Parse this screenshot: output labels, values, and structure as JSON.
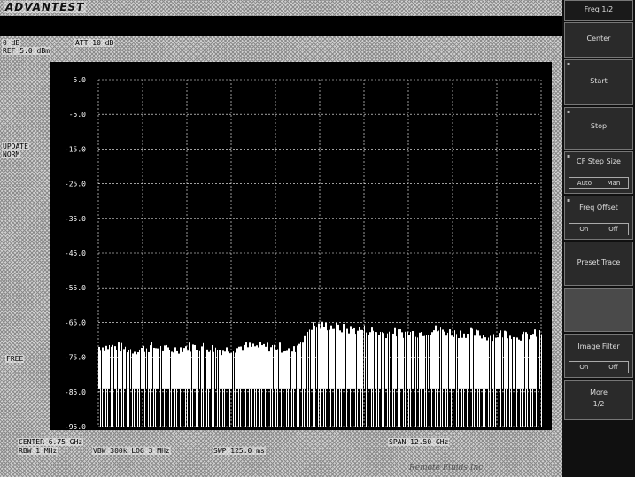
{
  "header": {
    "brand": "ADVANTEST"
  },
  "settings": {
    "line1_left": "0 dB",
    "line1_right": "ATT 10 dB",
    "line2": "REF 5.0 dBm"
  },
  "side_labels": {
    "update": "UPDATE",
    "mode": "NORM",
    "free": "FREE"
  },
  "y_ticks": [
    "5.0",
    "-5.0",
    "-15.0",
    "-25.0",
    "-35.0",
    "-45.0",
    "-55.0",
    "-65.0",
    "-75.0",
    "-85.0",
    "-95.0"
  ],
  "footer": {
    "center": "CENTER 6.75 GHz",
    "span": "SPAN 12.50 GHz",
    "rbw": "RBW 1 MHz",
    "vbw": "VBW 300k LOG 3 MHz",
    "swp": "SWP 125.0 ms",
    "watermark": "Remote Fluids Inc."
  },
  "softkeys": {
    "page": "Freq 1/2",
    "center": "Center",
    "start": "Start",
    "stop": "Stop",
    "cf_step": "CF Step Size",
    "cf_step_opt1": "Auto",
    "cf_step_opt2": "Man",
    "freq_offset": "Freq Offset",
    "freq_offset_opt1": "On",
    "freq_offset_opt2": "Off",
    "preset_trace": "Preset Trace",
    "image_filter": "Image Filter",
    "image_filter_opt1": "On",
    "image_filter_opt2": "Off",
    "more": "More",
    "more_page": "1/2"
  },
  "colors": {
    "plot_bg": "#000000",
    "grid": "#ffffff",
    "trace": "#ffffff"
  },
  "chart_data": {
    "type": "line",
    "title": "",
    "xlabel": "",
    "ylabel": "",
    "x_unit": "GHz",
    "x": [
      0.5,
      1.0,
      1.5,
      2.0,
      2.5,
      3.0,
      3.5,
      4.0,
      4.5,
      5.0,
      5.5,
      6.0,
      6.5,
      7.0,
      7.5,
      8.0,
      8.5,
      9.0,
      9.5,
      10.0,
      10.5,
      11.0,
      11.5,
      12.0,
      12.5,
      13.0
    ],
    "series": [
      {
        "values": [
          -72,
          -72,
          -73,
          -72,
          -73,
          -72,
          -72,
          -73,
          -72,
          -72,
          -72,
          -73,
          -66,
          -66,
          -67,
          -67,
          -68,
          -68,
          -68,
          -67,
          -68,
          -68,
          -69,
          -68,
          -69,
          -68
        ]
      }
    ],
    "ylim": [
      -95,
      5
    ],
    "grid": true,
    "xlim": [
      0.5,
      13.0
    ]
  }
}
